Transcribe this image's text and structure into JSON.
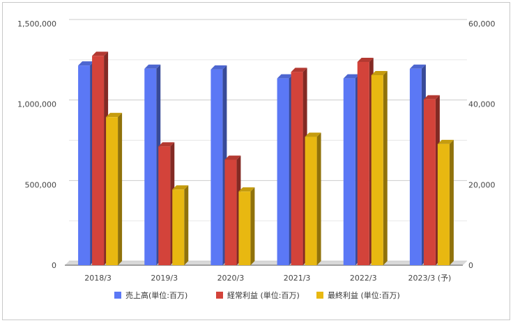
{
  "chart_data": {
    "type": "bar",
    "style": "3d-clustered-bar",
    "categories": [
      "2018/3",
      "2019/3",
      "2020/3",
      "2021/3",
      "2022/3",
      "2023/3 (予)"
    ],
    "series": [
      {
        "name": "売上高(単位:百万)",
        "axis": "left",
        "color": "#5b78f5",
        "values": [
          1240000,
          1220000,
          1215000,
          1160000,
          1160000,
          1220000
        ]
      },
      {
        "name": "経常利益 (単位:百万)",
        "axis": "right",
        "color": "#d3433a",
        "values": [
          52000,
          29500,
          26200,
          48000,
          50500,
          41200
        ]
      },
      {
        "name": "最終利益 (単位:百万)",
        "axis": "right",
        "color": "#e8b811",
        "values": [
          36800,
          18800,
          18300,
          31900,
          47200,
          30100
        ]
      }
    ],
    "y_left": {
      "min": 0,
      "max": 1500000,
      "ticks": [
        "0",
        "500,000",
        "1,000,000",
        "1,500,000"
      ],
      "tick_values": [
        0,
        500000,
        1000000,
        1500000
      ]
    },
    "y_right": {
      "min": 0,
      "max": 60000,
      "ticks": [
        "0",
        "20,000",
        "40,000",
        "60,000"
      ],
      "tick_values": [
        0,
        20000,
        40000,
        60000
      ]
    },
    "grid": true,
    "legend_position": "bottom"
  }
}
